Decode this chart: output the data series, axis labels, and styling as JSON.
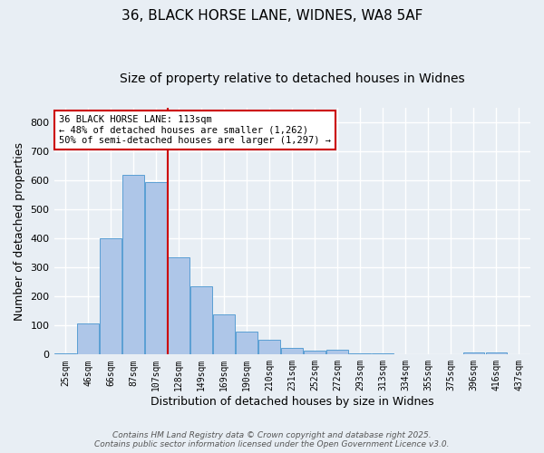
{
  "title1": "36, BLACK HORSE LANE, WIDNES, WA8 5AF",
  "title2": "Size of property relative to detached houses in Widnes",
  "xlabel": "Distribution of detached houses by size in Widnes",
  "ylabel": "Number of detached properties",
  "bar_labels": [
    "25sqm",
    "46sqm",
    "66sqm",
    "87sqm",
    "107sqm",
    "128sqm",
    "149sqm",
    "169sqm",
    "190sqm",
    "210sqm",
    "231sqm",
    "252sqm",
    "272sqm",
    "293sqm",
    "313sqm",
    "334sqm",
    "355sqm",
    "375sqm",
    "396sqm",
    "416sqm",
    "437sqm"
  ],
  "bar_heights": [
    5,
    107,
    400,
    620,
    595,
    335,
    235,
    138,
    80,
    50,
    22,
    15,
    17,
    5,
    3,
    0,
    0,
    0,
    7,
    8,
    0
  ],
  "bar_color": "#aec6e8",
  "bar_edge_color": "#5a9fd4",
  "property_line_x": 4.5,
  "annotation_text": "36 BLACK HORSE LANE: 113sqm\n← 48% of detached houses are smaller (1,262)\n50% of semi-detached houses are larger (1,297) →",
  "annotation_box_color": "#ffffff",
  "annotation_box_edge_color": "#cc0000",
  "vline_color": "#cc0000",
  "ylim": [
    0,
    850
  ],
  "yticks": [
    0,
    100,
    200,
    300,
    400,
    500,
    600,
    700,
    800
  ],
  "bg_color": "#e8eef4",
  "grid_color": "#ffffff",
  "footer_text": "Contains HM Land Registry data © Crown copyright and database right 2025.\nContains public sector information licensed under the Open Government Licence v3.0.",
  "title_fontsize": 11,
  "subtitle_fontsize": 10,
  "tick_fontsize": 7,
  "label_fontsize": 9,
  "annotation_fontsize": 7.5
}
